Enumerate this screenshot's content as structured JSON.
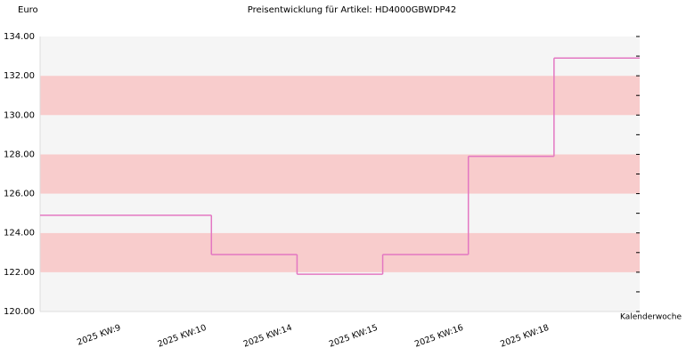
{
  "chart_data": {
    "type": "step",
    "title": "Preisentwicklung für Artikel: HD4000GBWDP42",
    "y_label": "Euro",
    "x_label": "Kalenderwoche",
    "categories": [
      "2025 KW:9",
      "2025 KW:10",
      "2025 KW:14",
      "2025 KW:15",
      "2025 KW:16",
      "2025 KW:18"
    ],
    "values": [
      124.9,
      122.9,
      121.9,
      122.9,
      127.9,
      132.9
    ],
    "color": "#e377c2",
    "ylim": [
      120,
      134
    ],
    "yticks": [
      {
        "value": 120,
        "label": "120.00"
      },
      {
        "value": 122,
        "label": "122.00"
      },
      {
        "value": 124,
        "label": "124.00"
      },
      {
        "value": 126,
        "label": "126.00"
      },
      {
        "value": 128,
        "label": "128.00"
      },
      {
        "value": 130,
        "label": "130.00"
      },
      {
        "value": 132,
        "label": "132.00"
      },
      {
        "value": 134,
        "label": "134.00"
      }
    ],
    "band_colors": [
      "#f5f5f5",
      "#f8cccc"
    ]
  }
}
